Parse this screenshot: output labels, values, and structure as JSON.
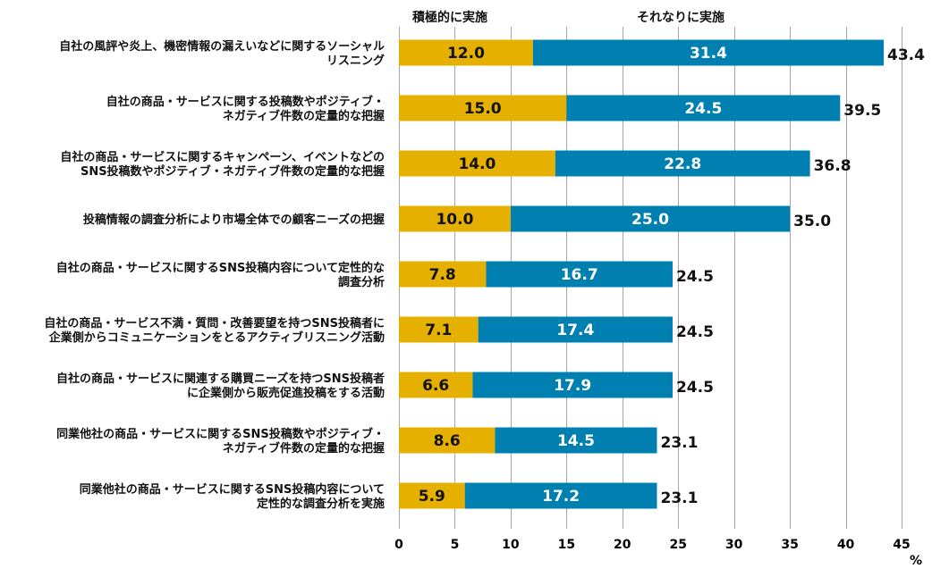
{
  "chart_data": {
    "type": "bar",
    "orientation": "horizontal",
    "stacked": true,
    "categories": [
      [
        "自社の風評や炎上、機密情報の漏えいなどに関するソーシャル",
        "リスニング"
      ],
      [
        "自社の商品・サービスに関する投稿数やポジティブ・",
        "ネガティブ件数の定量的な把握"
      ],
      [
        "自社の商品・サービスに関するキャンペーン、イベントなどの",
        "SNS投稿数やポジティブ・ネガティブ件数の定量的な把握"
      ],
      [
        "投稿情報の調査分析により市場全体での顧客ニーズの把握"
      ],
      [
        "自社の商品・サービスに関するSNS投稿内容について定性的な",
        "調査分析"
      ],
      [
        "自社の商品・サービス不満・質問・改善要望を持つSNS投稿者に",
        "企業側からコミュニケーションをとるアクティブリスニング活動"
      ],
      [
        "自社の商品・サービスに関連する購買ニーズを持つSNS投稿者",
        "に企業側から販売促進投稿をする活動"
      ],
      [
        "同業他社の商品・サービスに関するSNS投稿数やポジティブ・",
        "ネガティブ件数の定量的な把握"
      ],
      [
        "同業他社の商品・サービスに関するSNS投稿内容について",
        "定性的な調査分析を実施"
      ]
    ],
    "series": [
      {
        "name": "積極的に実施",
        "color": "#E5B000",
        "values": [
          12.0,
          15.0,
          14.0,
          10.0,
          7.8,
          7.1,
          6.6,
          8.6,
          5.9
        ]
      },
      {
        "name": "それなりに実施",
        "color": "#0080B0",
        "values": [
          31.4,
          24.5,
          22.8,
          25.0,
          16.7,
          17.4,
          17.9,
          14.5,
          17.2
        ]
      }
    ],
    "totals": [
      43.4,
      39.5,
      36.8,
      35.0,
      24.5,
      24.5,
      24.5,
      23.1,
      23.1
    ],
    "xlim": [
      0,
      45
    ],
    "xticks": [
      "0",
      "5",
      "10",
      "15",
      "20",
      "25",
      "30",
      "35",
      "40",
      "45"
    ],
    "xunit": "%",
    "grid": true,
    "legend_position": "top"
  }
}
